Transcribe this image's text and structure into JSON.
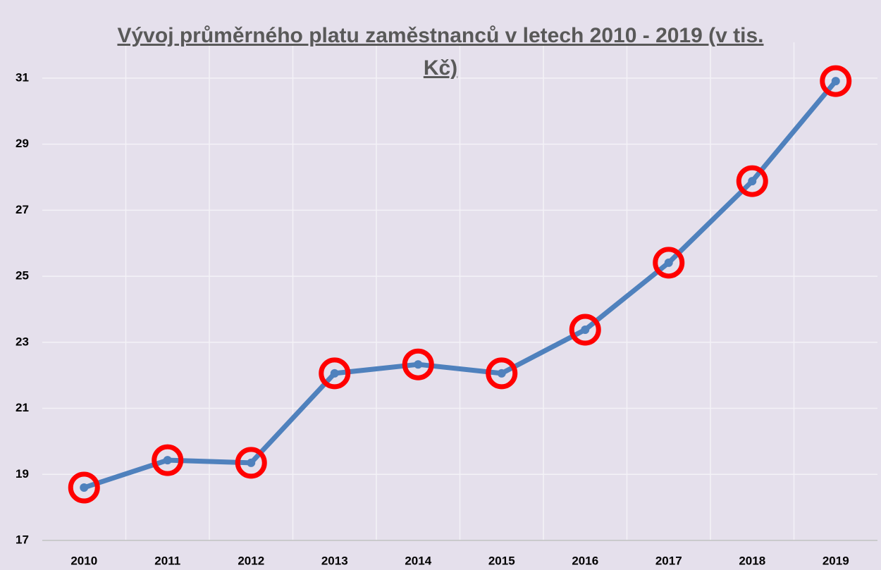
{
  "chart_data": {
    "type": "line",
    "title": "Vývoj průměrného platu zaměstnanců v letech 2010 - 2019 (v tis. Kč)",
    "categories": [
      "2010",
      "2011",
      "2012",
      "2013",
      "2014",
      "2015",
      "2016",
      "2017",
      "2018",
      "2019"
    ],
    "values": [
      18.6,
      19.43,
      19.35,
      22.06,
      22.33,
      22.06,
      23.38,
      25.41,
      27.88,
      30.91
    ],
    "color": "#4f81bd",
    "marker_color": "#ff0000",
    "ylim": [
      17,
      32
    ],
    "yticks": [
      17,
      19,
      21,
      23,
      25,
      27,
      29,
      31
    ],
    "grid": true
  }
}
